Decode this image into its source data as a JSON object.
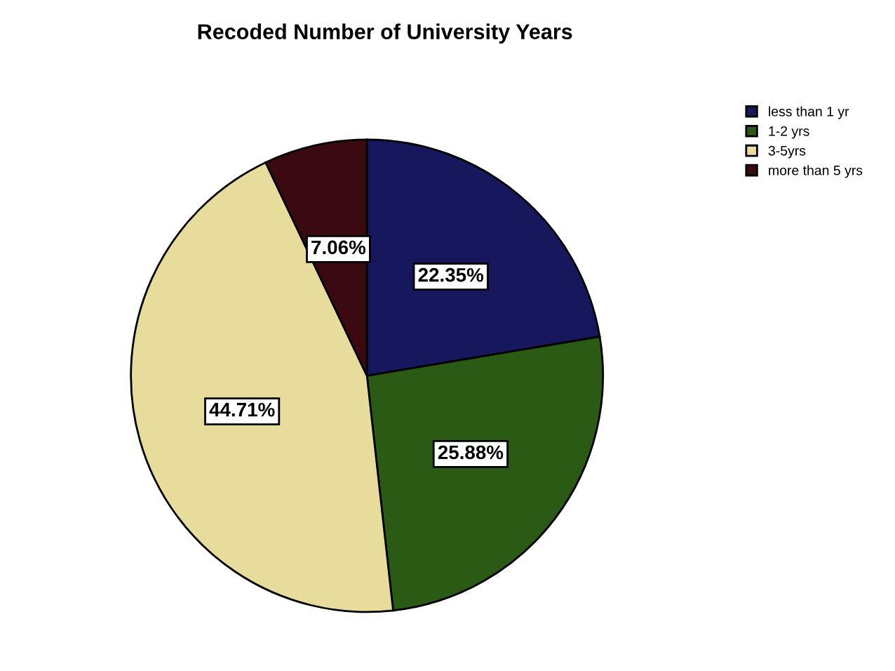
{
  "chart_data": {
    "type": "pie",
    "title": "Recoded Number of University Years",
    "categories": [
      "less than 1 yr",
      "1-2 yrs",
      "3-5yrs",
      "more than 5 yrs"
    ],
    "values": [
      22.35,
      25.88,
      44.71,
      7.06
    ],
    "colors": [
      "#17175e",
      "#2a5a14",
      "#e8dc9c",
      "#3a0a10"
    ],
    "value_labels": [
      "22.35%",
      "25.88%",
      "44.71%",
      "7.06%"
    ],
    "legend": "top right"
  }
}
